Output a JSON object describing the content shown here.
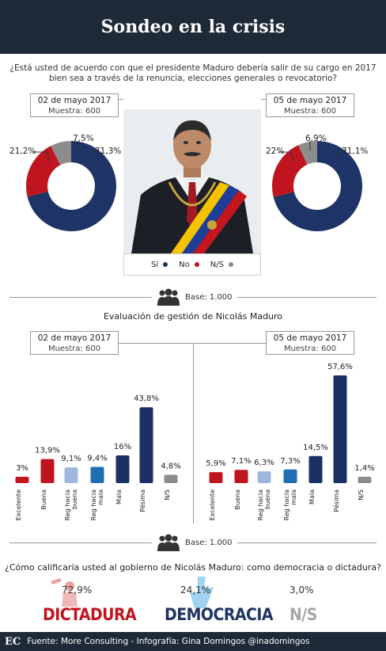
{
  "header": {
    "title": "Sondeo en la crisis"
  },
  "q1": {
    "line1": "¿Está usted de acuerdo con que el presidente Maduro debería salir de su cargo en 2017",
    "line2": "bien sea a través de la renuncia, elecciones generales o revocatorio?"
  },
  "survey1": {
    "date": "02 de mayo 2017",
    "sample": "Muestra: 600"
  },
  "survey2": {
    "date": "05 de mayo 2017",
    "sample": "Muestra: 600"
  },
  "legend": {
    "si": "Sí",
    "no": "No",
    "ns": "N/S"
  },
  "base": "Base: 1.000",
  "eval_title": "Evaluación de gestión de Nicolás Maduro",
  "bottom": {
    "question": "¿Cómo calificaría usted al gobierno de Nicolás Maduro: como democracia o dictadura?",
    "dictadura_pct": "72,9%",
    "dictadura_label": "DICTADURA",
    "democracia_pct": "24,1%",
    "democracia_label": "DEMOCRACIA",
    "ns_pct": "3,0%",
    "ns_label": "N/S"
  },
  "footer": {
    "logo": "EC",
    "text": "Fuente: More Consulting - Infografía: Gina Domingos @inadomingos"
  },
  "colors": {
    "navy": "#1f3466",
    "red": "#c0141f",
    "gray": "#8c8c8c",
    "excelente": "#c0141f",
    "buena": "#c0141f",
    "reg_buena": "#9db8dc",
    "reg_mala": "#1f6eb2",
    "mala": "#1b2f63",
    "pesima": "#1b2f63",
    "ns": "#8c8c8c"
  },
  "chart_data": [
    {
      "type": "pie",
      "title": "02 de mayo 2017",
      "categories": [
        "Sí",
        "No",
        "N/S"
      ],
      "values": [
        71.3,
        21.2,
        7.5
      ],
      "labels": [
        "71,3%",
        "21,2%",
        "7,5%"
      ]
    },
    {
      "type": "pie",
      "title": "05 de mayo 2017",
      "categories": [
        "Sí",
        "No",
        "N/S"
      ],
      "values": [
        71.1,
        22,
        6.9
      ],
      "labels": [
        "71,1%",
        "22%",
        "6,9%"
      ]
    },
    {
      "type": "bar",
      "title": "02 de mayo 2017",
      "categories": [
        "Excelente",
        "Buena",
        "Reg hacia buena",
        "Reg hacia mala",
        "Mala",
        "Pésima",
        "N/S"
      ],
      "values": [
        3,
        13.9,
        9.1,
        9.4,
        16,
        43.8,
        4.8
      ],
      "labels": [
        "3%",
        "13,9%",
        "9,1%",
        "9,4%",
        "16%",
        "43,8%",
        "4,8%"
      ]
    },
    {
      "type": "bar",
      "title": "05 de mayo 2017",
      "categories": [
        "Excelente",
        "Buena",
        "Reg hacia buena",
        "Reg hacia mala",
        "Mala",
        "Pésima",
        "N/S"
      ],
      "values": [
        5.9,
        7.1,
        6.3,
        7.3,
        14.5,
        57.6,
        1.4
      ],
      "labels": [
        "5,9%",
        "7,1%",
        "6,3%",
        "7,3%",
        "14,5%",
        "57,6%",
        "1,4%"
      ]
    }
  ]
}
